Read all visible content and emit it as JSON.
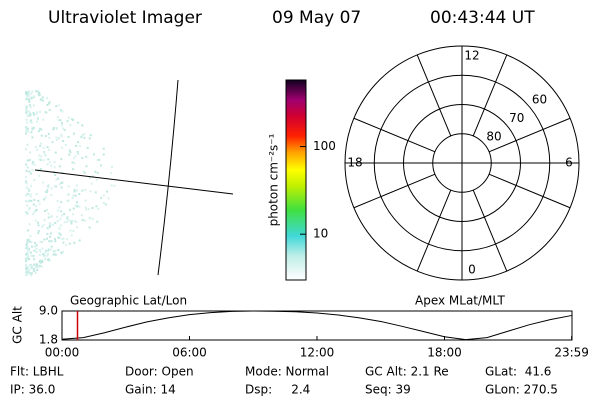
{
  "header": {
    "instrument": "Ultraviolet Imager",
    "date": "09 May 07",
    "time": "00:43:44 UT"
  },
  "colorbar": {
    "label": "photon cm⁻²s⁻¹",
    "log": true,
    "clim": [
      3,
      575
    ],
    "ticks": [
      10,
      100
    ]
  },
  "polar": {
    "rlim": [
      50,
      90
    ],
    "rings": [
      60,
      70,
      80
    ],
    "mlt_ticks": [
      0,
      6,
      12,
      18
    ]
  },
  "timeline": {
    "left_title": "Geographic Lat/Lon",
    "right_title": "Apex MLat/MLT",
    "ylabel": "GC Alt",
    "xlim": [
      0,
      24
    ],
    "ylim": [
      1.8,
      9
    ],
    "yticks": [
      1.8,
      {
        "value": 9,
        "label": "9.0"
      }
    ],
    "xticks": [
      {
        "value": 0,
        "label": "00:00"
      },
      {
        "value": 6,
        "label": "06:00"
      },
      {
        "value": 12,
        "label": "12:00"
      },
      {
        "value": 18,
        "label": "18:00"
      },
      {
        "value": 23.983,
        "label": "23:59"
      }
    ],
    "x": [
      0,
      1,
      2,
      3,
      4,
      5,
      6,
      7,
      8,
      9,
      10,
      11,
      12,
      13,
      14,
      15,
      16,
      17,
      18,
      19,
      20,
      21,
      22,
      23,
      24
    ],
    "values": [
      2.0,
      2.4,
      3.6,
      5.0,
      6.3,
      7.3,
      8.1,
      8.6,
      8.9,
      9.0,
      8.95,
      8.8,
      8.5,
      8.0,
      7.3,
      6.4,
      5.2,
      3.9,
      2.6,
      1.9,
      2.4,
      4.0,
      5.6,
      6.9,
      7.9
    ],
    "current": 0.729,
    "current_color": "#cc0000"
  },
  "footer": {
    "rows": [
      [
        "Flt: LBHL",
        "Door: Open",
        "Mode: Normal",
        "GC Alt: 2.1 Re",
        "GLat:  41.6"
      ],
      [
        "IP: 36.0",
        "Gain: 14",
        "Dsp:     2.4",
        "Seq: 39",
        "GLon: 270.5"
      ]
    ]
  }
}
